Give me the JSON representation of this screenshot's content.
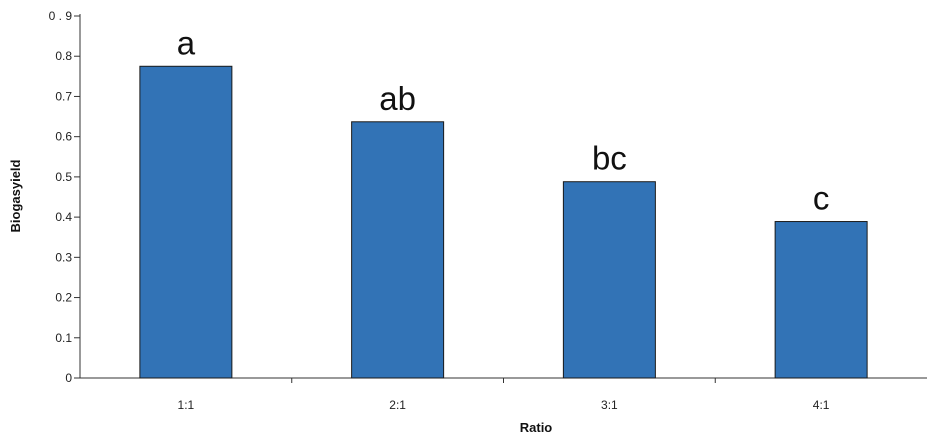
{
  "chart_data": {
    "type": "bar",
    "title": "",
    "xlabel": "Ratio",
    "ylabel": "Biogasyield",
    "categories": [
      "1:1",
      "2:1",
      "3:1",
      "4:1"
    ],
    "values": [
      0.775,
      0.637,
      0.488,
      0.389
    ],
    "annotations": [
      "a",
      "ab",
      "bc",
      "c"
    ],
    "ylim": [
      0,
      0.9
    ],
    "yticks": [
      0,
      0.1,
      0.2,
      0.3,
      0.4,
      0.5,
      0.6,
      0.7,
      0.8,
      0.9
    ],
    "ytick_labels": [
      "0",
      "0.1",
      "0.2",
      "0.3",
      "0.4",
      "0.5",
      "0.6",
      "0.7",
      "0.8",
      "0 . 9"
    ],
    "grid": false,
    "legend": "none",
    "colors": {
      "bar": "#3273b6",
      "bar_edge": "#1a1a1a",
      "axis": "#333333"
    }
  }
}
